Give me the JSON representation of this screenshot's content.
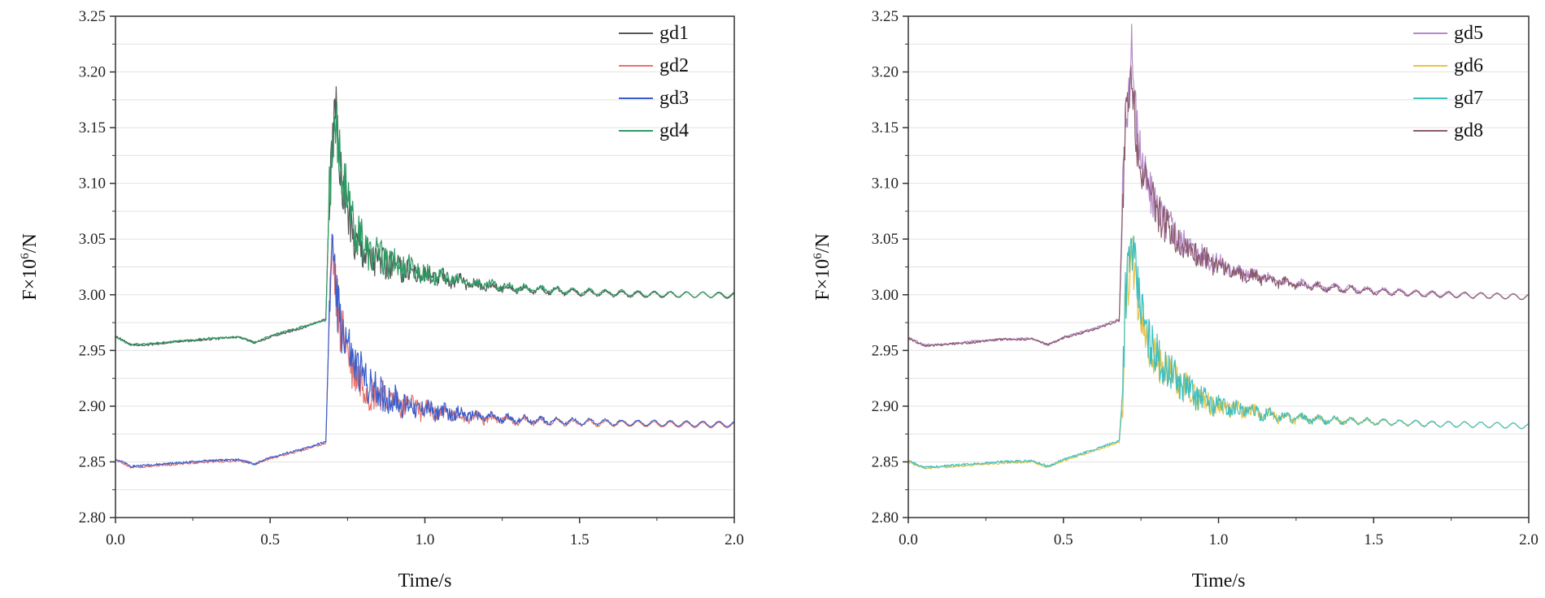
{
  "chart_data": [
    {
      "type": "line",
      "xlabel": "Time/s",
      "ylabel_prefix": "F×10",
      "ylabel_exp": "6",
      "ylabel_suffix": "/N",
      "xlim": [
        0.0,
        2.0
      ],
      "ylim": [
        2.8,
        3.25
      ],
      "xticks": [
        "0.0",
        "0.5",
        "1.0",
        "1.5",
        "2.0"
      ],
      "yticks": [
        "2.80",
        "2.85",
        "2.90",
        "2.95",
        "3.00",
        "3.05",
        "3.10",
        "3.15",
        "3.20",
        "3.25"
      ],
      "grid": true,
      "legend_position": "top-right",
      "series": [
        {
          "name": "gd1",
          "color": "#555555",
          "x": [
            0.0,
            0.05,
            0.1,
            0.2,
            0.3,
            0.4,
            0.45,
            0.5,
            0.6,
            0.68,
            0.69,
            0.7,
            0.71,
            0.73,
            0.76,
            0.8,
            0.85,
            0.9,
            0.95,
            1.0,
            1.1,
            1.2,
            1.3,
            1.5,
            1.7,
            1.9,
            2.0
          ],
          "values": [
            2.963,
            2.955,
            2.955,
            2.958,
            2.96,
            2.962,
            2.957,
            2.962,
            2.97,
            2.978,
            3.08,
            3.12,
            3.175,
            3.1,
            3.06,
            3.04,
            3.03,
            3.025,
            3.022,
            3.018,
            3.012,
            3.008,
            3.005,
            3.002,
            3.0,
            3.0,
            2.999
          ]
        },
        {
          "name": "gd2",
          "color": "#e8736b",
          "x": [
            0.0,
            0.05,
            0.1,
            0.2,
            0.3,
            0.4,
            0.45,
            0.5,
            0.6,
            0.68,
            0.69,
            0.7,
            0.71,
            0.73,
            0.76,
            0.8,
            0.85,
            0.9,
            0.95,
            1.0,
            1.1,
            1.2,
            1.3,
            1.5,
            1.7,
            1.9,
            2.0
          ],
          "values": [
            2.852,
            2.845,
            2.846,
            2.848,
            2.85,
            2.851,
            2.848,
            2.853,
            2.86,
            2.867,
            2.97,
            3.05,
            3.01,
            2.97,
            2.94,
            2.92,
            2.91,
            2.905,
            2.9,
            2.896,
            2.892,
            2.889,
            2.887,
            2.885,
            2.884,
            2.883,
            2.883
          ]
        },
        {
          "name": "gd3",
          "color": "#3a5fcd",
          "x": [
            0.0,
            0.05,
            0.1,
            0.2,
            0.3,
            0.4,
            0.45,
            0.5,
            0.6,
            0.68,
            0.69,
            0.7,
            0.71,
            0.73,
            0.76,
            0.8,
            0.85,
            0.9,
            0.95,
            1.0,
            1.1,
            1.2,
            1.3,
            1.5,
            1.7,
            1.9,
            2.0
          ],
          "values": [
            2.853,
            2.846,
            2.847,
            2.849,
            2.851,
            2.852,
            2.848,
            2.854,
            2.861,
            2.868,
            2.97,
            3.06,
            3.01,
            2.975,
            2.945,
            2.925,
            2.912,
            2.905,
            2.9,
            2.897,
            2.893,
            2.89,
            2.888,
            2.886,
            2.885,
            2.884,
            2.884
          ]
        },
        {
          "name": "gd4",
          "color": "#2e9a63",
          "x": [
            0.0,
            0.05,
            0.1,
            0.2,
            0.3,
            0.4,
            0.45,
            0.5,
            0.6,
            0.68,
            0.69,
            0.7,
            0.71,
            0.73,
            0.76,
            0.8,
            0.85,
            0.9,
            0.95,
            1.0,
            1.1,
            1.2,
            1.3,
            1.5,
            1.7,
            1.9,
            2.0
          ],
          "values": [
            2.962,
            2.955,
            2.956,
            2.958,
            2.961,
            2.962,
            2.957,
            2.963,
            2.971,
            2.977,
            3.08,
            3.12,
            3.165,
            3.11,
            3.07,
            3.045,
            3.035,
            3.028,
            3.024,
            3.019,
            3.013,
            3.009,
            3.006,
            3.003,
            3.001,
            3.0,
            3.0
          ]
        }
      ]
    },
    {
      "type": "line",
      "xlabel": "Time/s",
      "ylabel_prefix": "F×10",
      "ylabel_exp": "6",
      "ylabel_suffix": "/N",
      "xlim": [
        0.0,
        2.0
      ],
      "ylim": [
        2.8,
        3.25
      ],
      "xticks": [
        "0.0",
        "0.5",
        "1.0",
        "1.5",
        "2.0"
      ],
      "yticks": [
        "2.80",
        "2.85",
        "2.90",
        "2.95",
        "3.00",
        "3.05",
        "3.10",
        "3.15",
        "3.20",
        "3.25"
      ],
      "grid": true,
      "legend_position": "top-right",
      "series": [
        {
          "name": "gd5",
          "color": "#b58ac9",
          "x": [
            0.0,
            0.05,
            0.1,
            0.2,
            0.3,
            0.4,
            0.45,
            0.5,
            0.6,
            0.68,
            0.69,
            0.7,
            0.72,
            0.74,
            0.77,
            0.8,
            0.85,
            0.9,
            0.95,
            1.0,
            1.1,
            1.2,
            1.3,
            1.5,
            1.7,
            1.9,
            2.0
          ],
          "values": [
            2.962,
            2.955,
            2.955,
            2.958,
            2.96,
            2.961,
            2.955,
            2.962,
            2.97,
            2.978,
            3.08,
            3.15,
            3.22,
            3.14,
            3.1,
            3.08,
            3.06,
            3.045,
            3.035,
            3.028,
            3.018,
            3.012,
            3.008,
            3.004,
            3.001,
            2.999,
            2.998
          ]
        },
        {
          "name": "gd6",
          "color": "#e6c44a",
          "x": [
            0.0,
            0.05,
            0.1,
            0.2,
            0.3,
            0.4,
            0.45,
            0.5,
            0.6,
            0.68,
            0.69,
            0.7,
            0.72,
            0.74,
            0.77,
            0.8,
            0.85,
            0.9,
            0.95,
            1.0,
            1.1,
            1.2,
            1.3,
            1.5,
            1.7,
            1.9,
            2.0
          ],
          "values": [
            2.85,
            2.844,
            2.845,
            2.847,
            2.849,
            2.85,
            2.845,
            2.851,
            2.86,
            2.868,
            2.9,
            2.99,
            3.04,
            2.99,
            2.96,
            2.94,
            2.925,
            2.915,
            2.905,
            2.9,
            2.895,
            2.89,
            2.888,
            2.886,
            2.884,
            2.883,
            2.882
          ]
        },
        {
          "name": "gd7",
          "color": "#3fbfbf",
          "x": [
            0.0,
            0.05,
            0.1,
            0.2,
            0.3,
            0.4,
            0.45,
            0.5,
            0.6,
            0.68,
            0.69,
            0.7,
            0.72,
            0.74,
            0.77,
            0.8,
            0.85,
            0.9,
            0.95,
            1.0,
            1.1,
            1.2,
            1.3,
            1.5,
            1.7,
            1.9,
            2.0
          ],
          "values": [
            2.851,
            2.845,
            2.846,
            2.848,
            2.85,
            2.851,
            2.846,
            2.852,
            2.861,
            2.869,
            2.91,
            3.0,
            3.05,
            3.0,
            2.965,
            2.945,
            2.928,
            2.916,
            2.906,
            2.901,
            2.895,
            2.891,
            2.888,
            2.886,
            2.884,
            2.883,
            2.882
          ]
        },
        {
          "name": "gd8",
          "color": "#8a5a6e",
          "x": [
            0.0,
            0.05,
            0.1,
            0.2,
            0.3,
            0.4,
            0.45,
            0.5,
            0.6,
            0.68,
            0.69,
            0.7,
            0.72,
            0.74,
            0.77,
            0.8,
            0.85,
            0.9,
            0.95,
            1.0,
            1.1,
            1.2,
            1.3,
            1.5,
            1.7,
            1.9,
            2.0
          ],
          "values": [
            2.961,
            2.954,
            2.955,
            2.957,
            2.96,
            2.96,
            2.955,
            2.961,
            2.969,
            2.977,
            3.07,
            3.15,
            3.2,
            3.13,
            3.095,
            3.075,
            3.055,
            3.042,
            3.033,
            3.026,
            3.017,
            3.011,
            3.007,
            3.003,
            3.0,
            2.999,
            2.998
          ]
        }
      ]
    }
  ]
}
